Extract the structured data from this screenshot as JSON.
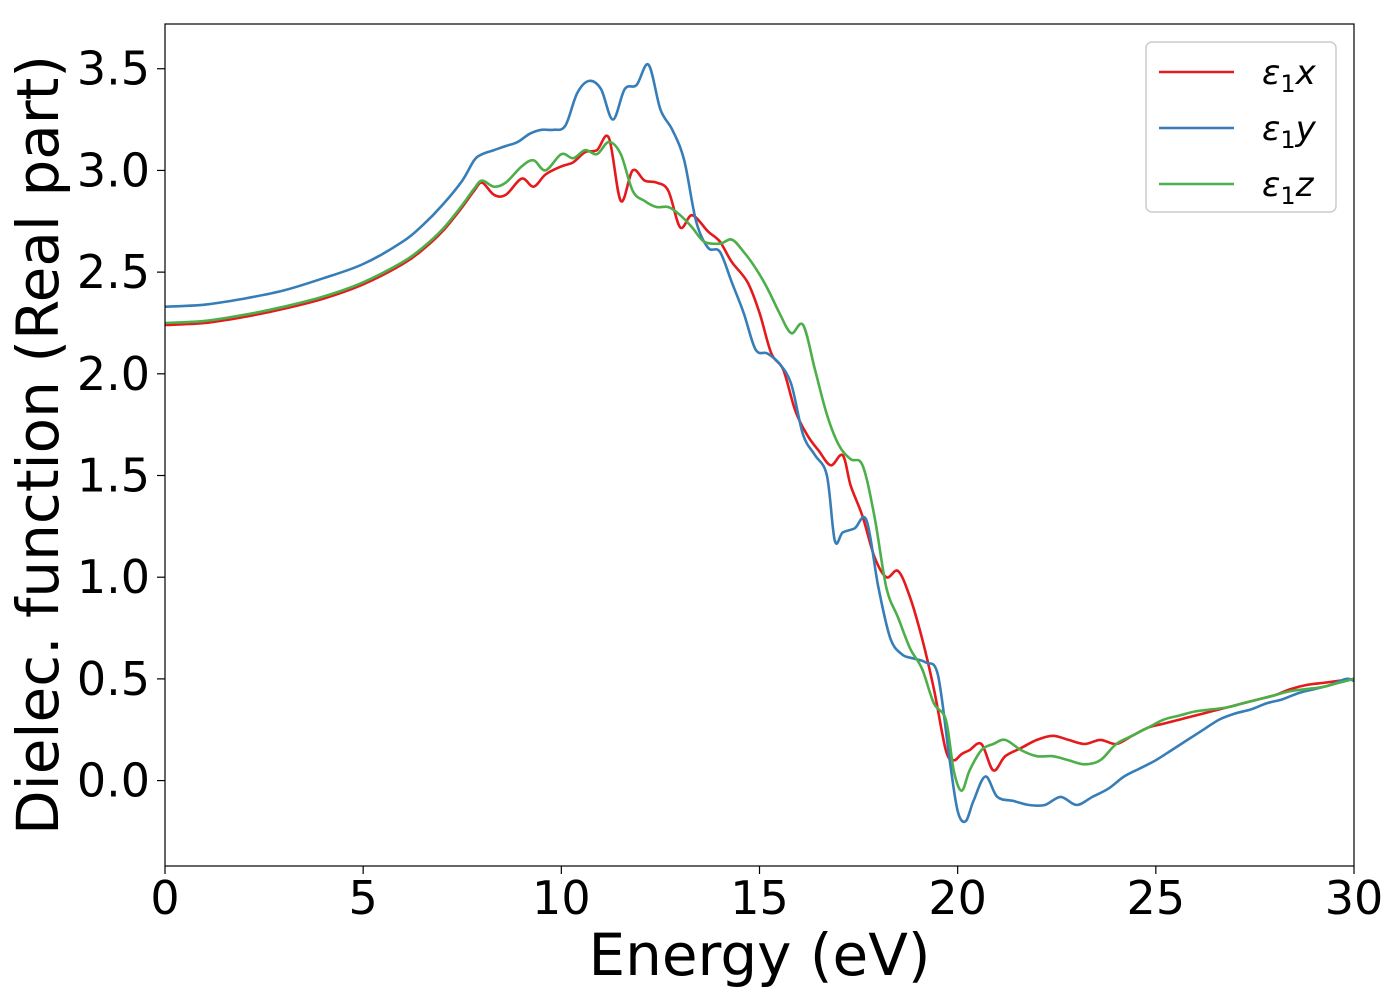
{
  "chart_data": {
    "type": "line",
    "xlabel": "Energy (eV)",
    "ylabel": "Dielec. function (Real part)",
    "xlim": [
      0,
      30
    ],
    "ylim": [
      -0.42,
      3.72
    ],
    "xticks": [
      0,
      5,
      10,
      15,
      20,
      25,
      30
    ],
    "yticks": [
      0.0,
      0.5,
      1.0,
      1.5,
      2.0,
      2.5,
      3.0,
      3.5
    ],
    "grid": false,
    "legend_position": "top-right",
    "series": [
      {
        "name": "ε1x",
        "symbol": "ε",
        "subscript": "1",
        "axis": "x",
        "color": "#e41a1c",
        "x": [
          0,
          1,
          2,
          3,
          4,
          5,
          6,
          6.5,
          7,
          7.5,
          7.8,
          8.0,
          8.3,
          8.6,
          9.0,
          9.3,
          9.6,
          10.0,
          10.3,
          10.6,
          10.9,
          11.2,
          11.5,
          11.8,
          12.1,
          12.4,
          12.7,
          13.0,
          13.3,
          13.7,
          14.0,
          14.3,
          14.7,
          15.0,
          15.3,
          15.6,
          15.9,
          16.2,
          16.5,
          16.8,
          17.1,
          17.3,
          17.6,
          17.9,
          18.2,
          18.5,
          18.8,
          19.1,
          19.4,
          19.7,
          19.9,
          20.1,
          20.3,
          20.6,
          20.9,
          21.2,
          21.6,
          22.0,
          22.4,
          22.8,
          23.2,
          23.6,
          24.0,
          24.4,
          24.8,
          25.2,
          25.6,
          26.0,
          26.4,
          26.8,
          27.2,
          27.6,
          28.0,
          28.4,
          28.8,
          29.2,
          29.6,
          30.0
        ],
        "y": [
          2.24,
          2.25,
          2.28,
          2.32,
          2.37,
          2.44,
          2.54,
          2.61,
          2.7,
          2.82,
          2.9,
          2.94,
          2.88,
          2.88,
          2.96,
          2.92,
          2.98,
          3.02,
          3.04,
          3.09,
          3.1,
          3.16,
          2.85,
          3.0,
          2.95,
          2.94,
          2.9,
          2.72,
          2.78,
          2.7,
          2.65,
          2.55,
          2.45,
          2.3,
          2.1,
          2.02,
          1.82,
          1.7,
          1.62,
          1.55,
          1.6,
          1.45,
          1.3,
          1.1,
          1.0,
          1.03,
          0.9,
          0.7,
          0.45,
          0.15,
          0.1,
          0.13,
          0.15,
          0.18,
          0.05,
          0.12,
          0.16,
          0.2,
          0.22,
          0.2,
          0.18,
          0.2,
          0.18,
          0.22,
          0.26,
          0.28,
          0.3,
          0.32,
          0.34,
          0.36,
          0.38,
          0.4,
          0.42,
          0.45,
          0.47,
          0.48,
          0.49,
          0.5
        ]
      },
      {
        "name": "ε1y",
        "symbol": "ε",
        "subscript": "1",
        "axis": "y",
        "color": "#377eb8",
        "x": [
          0,
          1,
          2,
          3,
          4,
          5,
          6,
          6.5,
          7,
          7.5,
          7.8,
          8.0,
          8.3,
          8.6,
          8.9,
          9.2,
          9.5,
          9.8,
          10.1,
          10.4,
          10.7,
          11.0,
          11.3,
          11.6,
          11.9,
          12.2,
          12.5,
          12.8,
          13.1,
          13.4,
          13.7,
          14.0,
          14.3,
          14.6,
          14.9,
          15.2,
          15.5,
          15.8,
          16.1,
          16.4,
          16.7,
          16.9,
          17.1,
          17.4,
          17.7,
          18.0,
          18.3,
          18.6,
          18.9,
          19.2,
          19.5,
          19.8,
          20.0,
          20.2,
          20.4,
          20.7,
          21.0,
          21.4,
          21.8,
          22.2,
          22.6,
          23.0,
          23.4,
          23.8,
          24.2,
          24.6,
          25.0,
          25.4,
          25.8,
          26.2,
          26.6,
          27.0,
          27.4,
          27.8,
          28.2,
          28.6,
          29.0,
          29.4,
          29.8,
          30.0
        ],
        "y": [
          2.33,
          2.34,
          2.37,
          2.41,
          2.47,
          2.54,
          2.65,
          2.73,
          2.83,
          2.95,
          3.05,
          3.08,
          3.1,
          3.12,
          3.14,
          3.18,
          3.2,
          3.2,
          3.22,
          3.38,
          3.44,
          3.4,
          3.25,
          3.4,
          3.42,
          3.52,
          3.3,
          3.2,
          3.05,
          2.75,
          2.62,
          2.6,
          2.45,
          2.3,
          2.12,
          2.1,
          2.05,
          1.95,
          1.7,
          1.6,
          1.5,
          1.18,
          1.22,
          1.24,
          1.28,
          0.95,
          0.7,
          0.62,
          0.6,
          0.58,
          0.52,
          0.1,
          -0.15,
          -0.2,
          -0.1,
          0.02,
          -0.08,
          -0.1,
          -0.12,
          -0.12,
          -0.08,
          -0.12,
          -0.08,
          -0.04,
          0.02,
          0.06,
          0.1,
          0.15,
          0.2,
          0.25,
          0.3,
          0.33,
          0.35,
          0.38,
          0.4,
          0.43,
          0.45,
          0.47,
          0.5,
          0.49
        ]
      },
      {
        "name": "ε1z",
        "symbol": "ε",
        "subscript": "1",
        "axis": "z",
        "color": "#4daf4a",
        "x": [
          0,
          1,
          2,
          3,
          4,
          5,
          6,
          6.5,
          7,
          7.5,
          7.8,
          8.0,
          8.3,
          8.6,
          9.0,
          9.3,
          9.6,
          10.0,
          10.3,
          10.6,
          10.9,
          11.2,
          11.5,
          11.8,
          12.1,
          12.4,
          12.7,
          13.0,
          13.3,
          13.6,
          14.0,
          14.3,
          14.6,
          14.9,
          15.2,
          15.5,
          15.8,
          16.1,
          16.4,
          16.7,
          17.0,
          17.3,
          17.6,
          17.9,
          18.2,
          18.5,
          18.8,
          19.1,
          19.4,
          19.7,
          19.9,
          20.1,
          20.3,
          20.6,
          20.9,
          21.2,
          21.6,
          22.0,
          22.4,
          22.8,
          23.2,
          23.6,
          24.0,
          24.4,
          24.8,
          25.2,
          25.6,
          26.0,
          26.4,
          26.8,
          27.2,
          27.6,
          28.0,
          28.4,
          28.8,
          29.2,
          29.6,
          30.0
        ],
        "y": [
          2.25,
          2.26,
          2.29,
          2.33,
          2.38,
          2.45,
          2.55,
          2.62,
          2.71,
          2.83,
          2.91,
          2.95,
          2.92,
          2.94,
          3.02,
          3.05,
          3.0,
          3.08,
          3.06,
          3.1,
          3.08,
          3.14,
          3.08,
          2.9,
          2.85,
          2.82,
          2.82,
          2.78,
          2.72,
          2.65,
          2.64,
          2.66,
          2.6,
          2.52,
          2.42,
          2.3,
          2.2,
          2.24,
          2.02,
          1.8,
          1.65,
          1.58,
          1.55,
          1.3,
          0.95,
          0.8,
          0.65,
          0.55,
          0.38,
          0.3,
          0.05,
          -0.05,
          0.05,
          0.15,
          0.18,
          0.2,
          0.15,
          0.12,
          0.12,
          0.1,
          0.08,
          0.1,
          0.18,
          0.22,
          0.26,
          0.3,
          0.32,
          0.34,
          0.35,
          0.36,
          0.38,
          0.4,
          0.42,
          0.44,
          0.45,
          0.46,
          0.48,
          0.5
        ]
      }
    ]
  }
}
